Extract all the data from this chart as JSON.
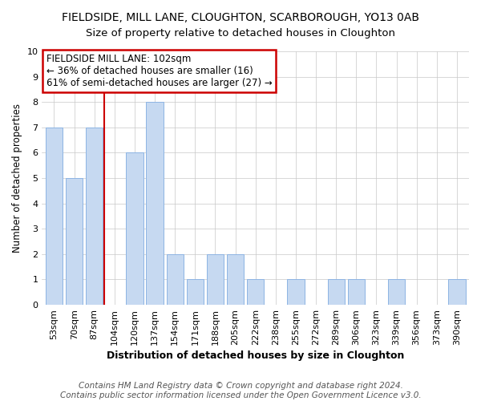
{
  "title": "FIELDSIDE, MILL LANE, CLOUGHTON, SCARBOROUGH, YO13 0AB",
  "subtitle": "Size of property relative to detached houses in Cloughton",
  "xlabel": "Distribution of detached houses by size in Cloughton",
  "ylabel": "Number of detached properties",
  "footer_line1": "Contains HM Land Registry data © Crown copyright and database right 2024.",
  "footer_line2": "Contains public sector information licensed under the Open Government Licence v3.0.",
  "categories": [
    "53sqm",
    "70sqm",
    "87sqm",
    "104sqm",
    "120sqm",
    "137sqm",
    "154sqm",
    "171sqm",
    "188sqm",
    "205sqm",
    "222sqm",
    "238sqm",
    "255sqm",
    "272sqm",
    "289sqm",
    "306sqm",
    "323sqm",
    "339sqm",
    "356sqm",
    "373sqm",
    "390sqm"
  ],
  "values": [
    7,
    5,
    7,
    0,
    6,
    8,
    2,
    1,
    2,
    2,
    1,
    0,
    1,
    0,
    1,
    1,
    0,
    1,
    0,
    0,
    1
  ],
  "bar_color": "#c6d9f1",
  "bar_edge_color": "#8db4e3",
  "property_line_x": 2.5,
  "annotation_text_line1": "FIELDSIDE MILL LANE: 102sqm",
  "annotation_text_line2": "← 36% of detached houses are smaller (16)",
  "annotation_text_line3": "61% of semi-detached houses are larger (27) →",
  "annotation_box_color": "#ffffff",
  "annotation_border_color": "#cc0000",
  "vline_color": "#cc0000",
  "ylim": [
    0,
    10
  ],
  "yticks": [
    0,
    1,
    2,
    3,
    4,
    5,
    6,
    7,
    8,
    9,
    10
  ],
  "title_fontsize": 10,
  "subtitle_fontsize": 9.5,
  "xlabel_fontsize": 9,
  "ylabel_fontsize": 8.5,
  "tick_fontsize": 8,
  "annotation_fontsize": 8.5,
  "footer_fontsize": 7.5
}
